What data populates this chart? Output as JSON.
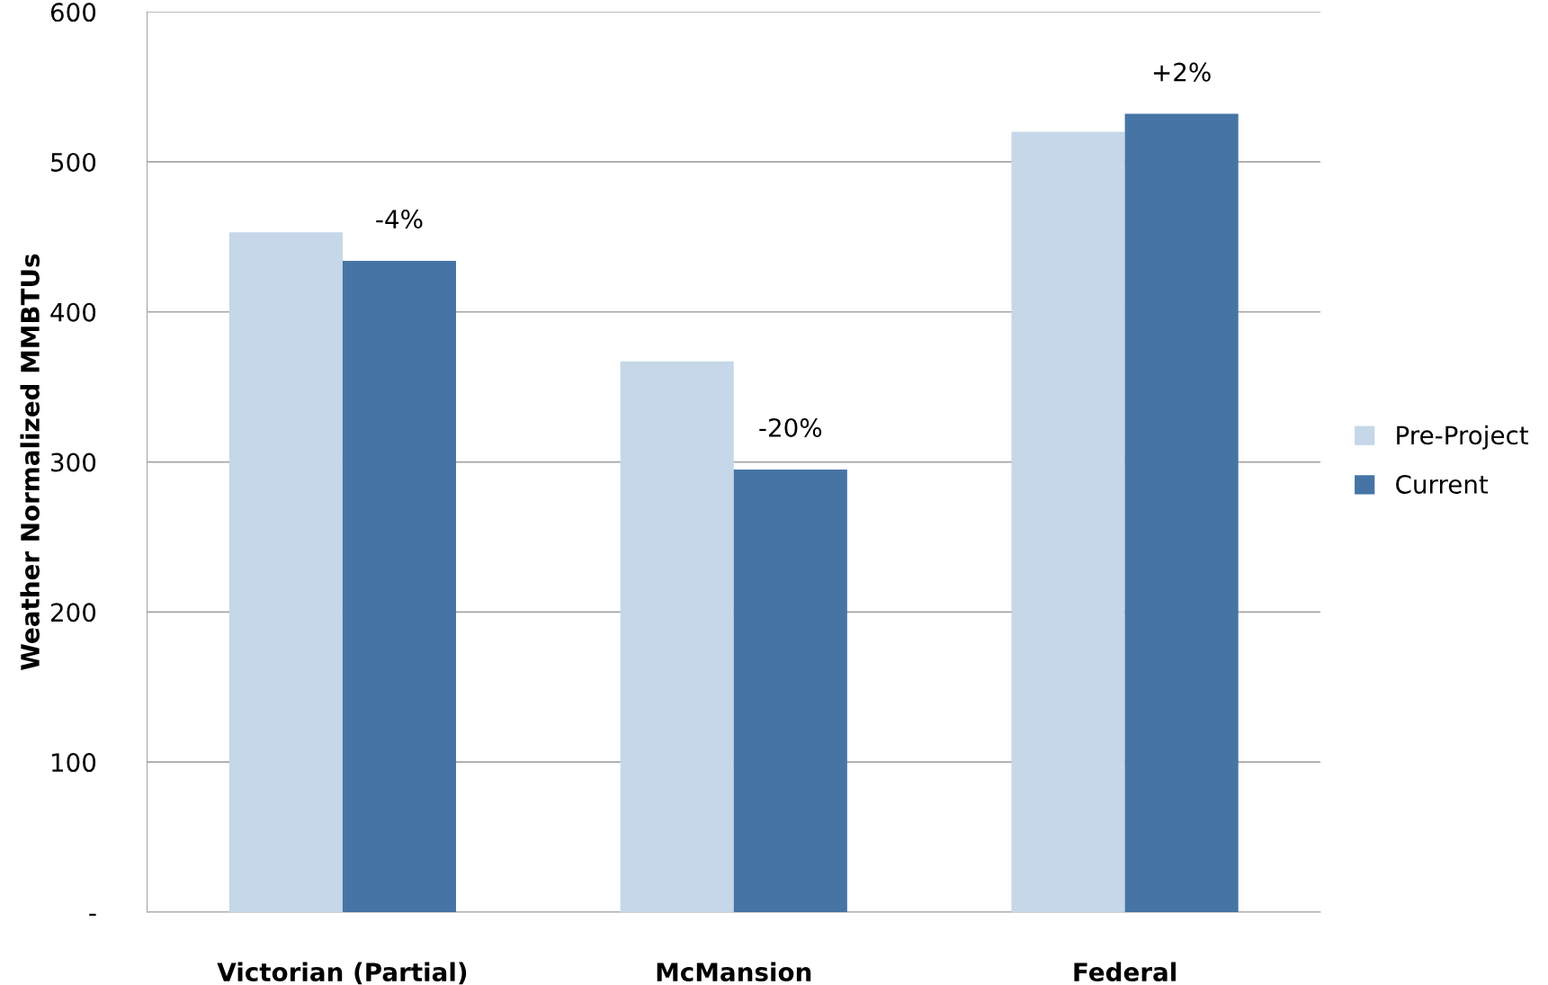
{
  "chart_data": {
    "type": "bar",
    "ylabel": "Weather Normalized MMBTUs",
    "categories": [
      "Victorian (Partial)",
      "McMansion",
      "Federal"
    ],
    "series": [
      {
        "name": "Pre-Project",
        "color": "#c5d7e8",
        "values": [
          453,
          367,
          520
        ]
      },
      {
        "name": "Current",
        "color": "#4674a5",
        "values": [
          434,
          295,
          532
        ]
      }
    ],
    "ylim": [
      0,
      600
    ],
    "yticks": [
      {
        "value": 0,
        "label": "-"
      },
      100,
      200,
      300,
      400,
      500,
      600
    ],
    "grid": "y",
    "legend": "right",
    "annotations": [
      {
        "text": "-4%",
        "x": "Victorian (Partial)",
        "y": 434
      },
      {
        "text": "-20%",
        "x": "McMansion",
        "y": 295
      },
      {
        "text": "+2%",
        "x": "Federal",
        "y": 532
      }
    ]
  }
}
